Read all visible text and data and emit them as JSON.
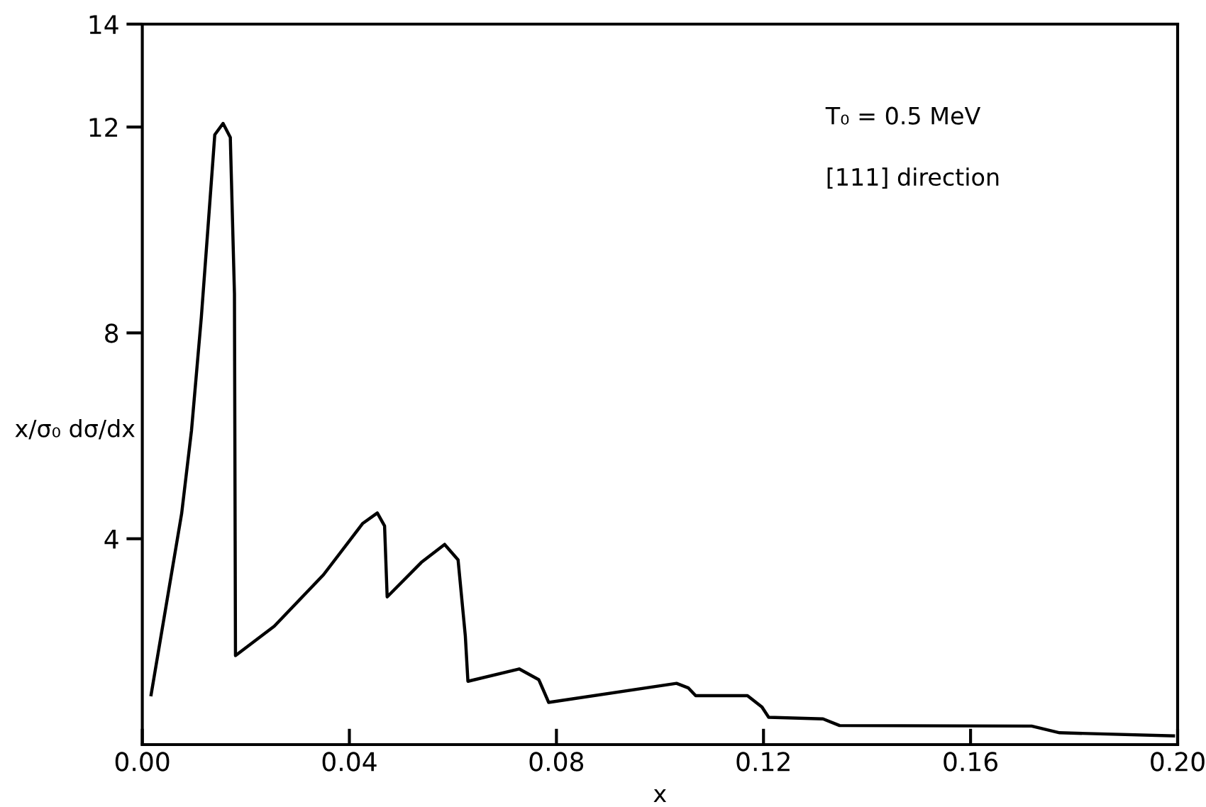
{
  "chart_data": {
    "type": "line",
    "xlabel": "x",
    "ylabel": "x/σ₀ dσ/dx",
    "annotations": [
      "T₀ = 0.5 MeV",
      "[111] direction"
    ],
    "x": [
      0.0017,
      0.0076,
      0.0095,
      0.0114,
      0.0128,
      0.014,
      0.0156,
      0.017,
      0.0178,
      0.018,
      0.0255,
      0.035,
      0.0426,
      0.0454,
      0.0468,
      0.0473,
      0.0539,
      0.0584,
      0.061,
      0.0624,
      0.0629,
      0.0728,
      0.0766,
      0.0785,
      0.1032,
      0.1055,
      0.1069,
      0.1169,
      0.1197,
      0.121,
      0.1315,
      0.1347,
      0.1718,
      0.1772,
      0.1992
    ],
    "series": [
      {
        "color": "#000000",
        "values": [
          0.97,
          4.49,
          6.1,
          8.3,
          10.2,
          11.85,
          12.07,
          11.8,
          8.76,
          1.73,
          2.3,
          3.3,
          4.3,
          4.5,
          4.25,
          2.87,
          3.54,
          3.89,
          3.59,
          2.11,
          1.23,
          1.47,
          1.26,
          0.82,
          1.19,
          1.1,
          0.95,
          0.95,
          0.73,
          0.53,
          0.5,
          0.37,
          0.36,
          0.23,
          0.17
        ]
      }
    ],
    "xlim": [
      0,
      0.2
    ],
    "ylim": [
      0,
      14
    ],
    "xticks": [
      {
        "value": 0,
        "label": "0.00"
      },
      {
        "value": 0.04,
        "label": "0.04"
      },
      {
        "value": 0.08,
        "label": "0.08"
      },
      {
        "value": 0.12,
        "label": "0.12"
      },
      {
        "value": 0.16,
        "label": "0.16"
      },
      {
        "value": 0.2,
        "label": "0.20"
      }
    ],
    "yticks": [
      4,
      8,
      12,
      14
    ],
    "grid": false,
    "marker": "none",
    "line_style": "solid"
  }
}
